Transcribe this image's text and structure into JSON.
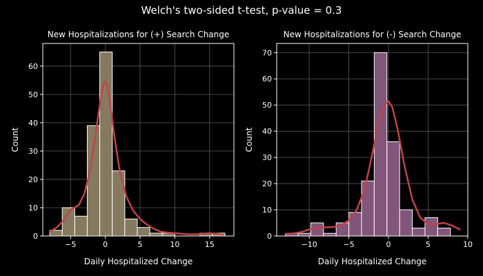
{
  "title": "Welch's two-sided t-test, p-value = 0.3",
  "colors": {
    "background": "#000000",
    "axes_face": "#000000",
    "frame": "#ffffff",
    "grid": "#5a5a5a",
    "kde": "#c0444a",
    "hist_left": "#857a5f",
    "hist_right": "#82557a",
    "bar_edge": "#ffffff"
  },
  "chart_data": [
    {
      "type": "bar",
      "subtype": "histogram_with_kde",
      "title": "New Hospitalizations for (+) Search Change",
      "xlabel": "Daily Hospitalized Change",
      "ylabel": "Count",
      "xlim": [
        -9,
        18.5
      ],
      "ylim": [
        0,
        68
      ],
      "xticks": [
        -5,
        0,
        5,
        10,
        15
      ],
      "xtick_labels": [
        "−5",
        "0",
        "5",
        "10",
        "15"
      ],
      "yticks": [
        0,
        10,
        20,
        30,
        40,
        50,
        60
      ],
      "ytick_labels": [
        "0",
        "10",
        "20",
        "30",
        "40",
        "50",
        "60"
      ],
      "grid": true,
      "bin_edges": [
        -8,
        -6.2,
        -4.4,
        -2.6,
        -0.8,
        1.0,
        2.8,
        4.6,
        6.4,
        8.2,
        10.0,
        11.8,
        13.6,
        15.4,
        17.2
      ],
      "counts": [
        2,
        10,
        7,
        39,
        65,
        23,
        6,
        3,
        1,
        1,
        0,
        0,
        1,
        1
      ],
      "kde": {
        "x": [
          -8,
          -7,
          -6,
          -5.3,
          -4.5,
          -3.8,
          -3,
          -2.2,
          -1.5,
          -1,
          -0.5,
          -0.2,
          0,
          0.3,
          0.7,
          1.2,
          2,
          3,
          4,
          5,
          6,
          7,
          8,
          9,
          10,
          11,
          12,
          13,
          14,
          15,
          16,
          17
        ],
        "y": [
          1.5,
          3,
          5.5,
          8.5,
          10,
          11,
          15,
          23,
          34,
          43,
          51,
          54,
          54.5,
          53,
          47,
          37,
          24,
          14,
          9,
          6,
          4,
          2.5,
          1.5,
          1.2,
          1,
          0.8,
          0.6,
          0.6,
          0.8,
          1,
          0.8,
          0.5
        ]
      }
    },
    {
      "type": "bar",
      "subtype": "histogram_with_kde",
      "title": "New Hospitalizations for (-) Search Change",
      "xlabel": "Daily Hospitalized Change",
      "ylabel": "Count",
      "xlim": [
        -14.1,
        10
      ],
      "ylim": [
        0,
        73.5
      ],
      "xticks": [
        -10,
        -5,
        0,
        5,
        10
      ],
      "xtick_labels": [
        "−10",
        "−5",
        "0",
        "5",
        "10"
      ],
      "yticks": [
        0,
        10,
        20,
        30,
        40,
        50,
        60,
        70
      ],
      "ytick_labels": [
        "0",
        "10",
        "20",
        "30",
        "40",
        "50",
        "60",
        "70"
      ],
      "grid": true,
      "bin_edges": [
        -13,
        -11.4,
        -9.8,
        -8.2,
        -6.6,
        -5.0,
        -3.4,
        -1.8,
        -0.2,
        1.4,
        3.0,
        4.6,
        6.2,
        7.8,
        9.4
      ],
      "counts": [
        1,
        1,
        5,
        1,
        5,
        9,
        21,
        70,
        36,
        10,
        3,
        7,
        3,
        0
      ],
      "kde": {
        "x": [
          -13,
          -12,
          -11,
          -10,
          -9,
          -8,
          -7,
          -6,
          -5,
          -4,
          -3,
          -2,
          -1.2,
          -0.5,
          0,
          0.5,
          1.2,
          2,
          3,
          4,
          5,
          6,
          7,
          8,
          9
        ],
        "y": [
          0.8,
          1,
          1.5,
          2.5,
          3,
          3.3,
          3.4,
          4,
          6,
          10,
          18,
          32,
          44,
          50,
          51.5,
          49,
          40,
          27,
          14,
          7,
          4.5,
          4.5,
          5,
          4,
          2.5
        ]
      }
    }
  ]
}
